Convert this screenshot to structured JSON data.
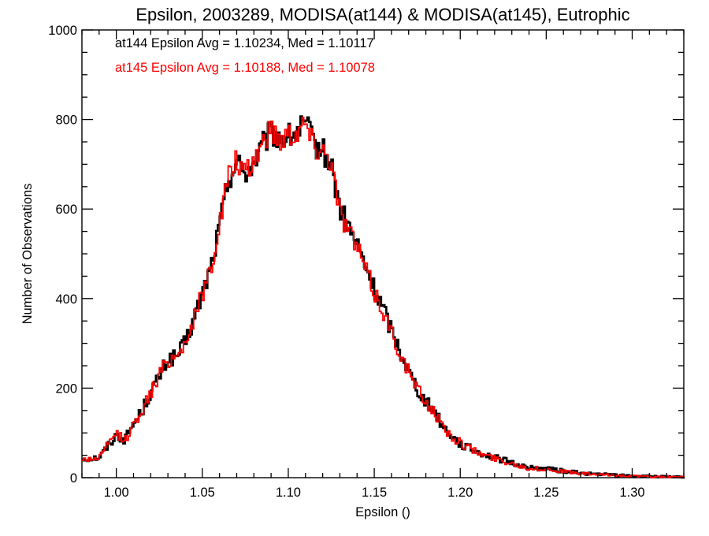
{
  "chart_data": {
    "type": "line",
    "title": "Epsilon, 2003289, MODISA(at144) & MODISA(at145), Eutrophic",
    "xlabel": "Epsilon ()",
    "ylabel": "Number of Observations",
    "xlim": [
      0.98,
      1.33
    ],
    "ylim": [
      0,
      1000
    ],
    "xticks": [
      1.0,
      1.05,
      1.1,
      1.15,
      1.2,
      1.25,
      1.3
    ],
    "xtick_labels": [
      "1.00",
      "1.05",
      "1.10",
      "1.15",
      "1.20",
      "1.25",
      "1.30"
    ],
    "yticks": [
      0,
      200,
      400,
      600,
      800,
      1000
    ],
    "ytick_labels": [
      "0",
      "200",
      "400",
      "600",
      "800",
      "1000"
    ],
    "grid": false,
    "annotations": [
      {
        "text": "at144 Epsilon Avg = 1.10234, Med = 1.10117",
        "color": "#000000"
      },
      {
        "text": "at145 Epsilon Avg = 1.10188, Med = 1.10078",
        "color": "#ff0000"
      }
    ],
    "series": [
      {
        "color": "#000000",
        "x": [
          0.98,
          0.99,
          1.0,
          1.005,
          1.01,
          1.015,
          1.02,
          1.025,
          1.03,
          1.035,
          1.04,
          1.045,
          1.05,
          1.055,
          1.06,
          1.065,
          1.07,
          1.075,
          1.08,
          1.085,
          1.09,
          1.095,
          1.1,
          1.105,
          1.11,
          1.115,
          1.12,
          1.125,
          1.13,
          1.135,
          1.14,
          1.145,
          1.15,
          1.155,
          1.16,
          1.165,
          1.17,
          1.175,
          1.18,
          1.185,
          1.19,
          1.195,
          1.2,
          1.21,
          1.22,
          1.23,
          1.24,
          1.25,
          1.26,
          1.27,
          1.28,
          1.29,
          1.3,
          1.31,
          1.32,
          1.33
        ],
        "y": [
          42,
          45,
          95,
          85,
          120,
          150,
          190,
          225,
          265,
          270,
          300,
          350,
          410,
          470,
          560,
          665,
          705,
          680,
          700,
          740,
          770,
          760,
          760,
          770,
          790,
          745,
          730,
          700,
          600,
          560,
          520,
          470,
          420,
          380,
          330,
          285,
          240,
          200,
          170,
          150,
          115,
          95,
          75,
          58,
          45,
          33,
          22,
          20,
          15,
          10,
          8,
          6,
          4,
          3,
          2,
          1
        ]
      },
      {
        "color": "#ff0000",
        "x": [
          0.98,
          0.99,
          1.0,
          1.005,
          1.01,
          1.015,
          1.02,
          1.025,
          1.03,
          1.035,
          1.04,
          1.045,
          1.05,
          1.055,
          1.06,
          1.065,
          1.07,
          1.075,
          1.08,
          1.085,
          1.09,
          1.095,
          1.1,
          1.105,
          1.11,
          1.115,
          1.12,
          1.125,
          1.13,
          1.135,
          1.14,
          1.145,
          1.15,
          1.155,
          1.16,
          1.165,
          1.17,
          1.175,
          1.18,
          1.185,
          1.19,
          1.195,
          1.2,
          1.21,
          1.22,
          1.23,
          1.24,
          1.25,
          1.26,
          1.27,
          1.28,
          1.29,
          1.3,
          1.31,
          1.32,
          1.33
        ],
        "y": [
          40,
          44,
          100,
          82,
          118,
          152,
          188,
          228,
          262,
          272,
          302,
          352,
          412,
          468,
          565,
          668,
          710,
          670,
          710,
          750,
          780,
          755,
          770,
          775,
          795,
          740,
          735,
          710,
          595,
          555,
          515,
          465,
          415,
          375,
          325,
          280,
          235,
          198,
          168,
          148,
          112,
          92,
          78,
          56,
          43,
          32,
          21,
          19,
          14,
          9,
          7,
          5,
          4,
          2,
          2,
          1
        ]
      }
    ]
  }
}
